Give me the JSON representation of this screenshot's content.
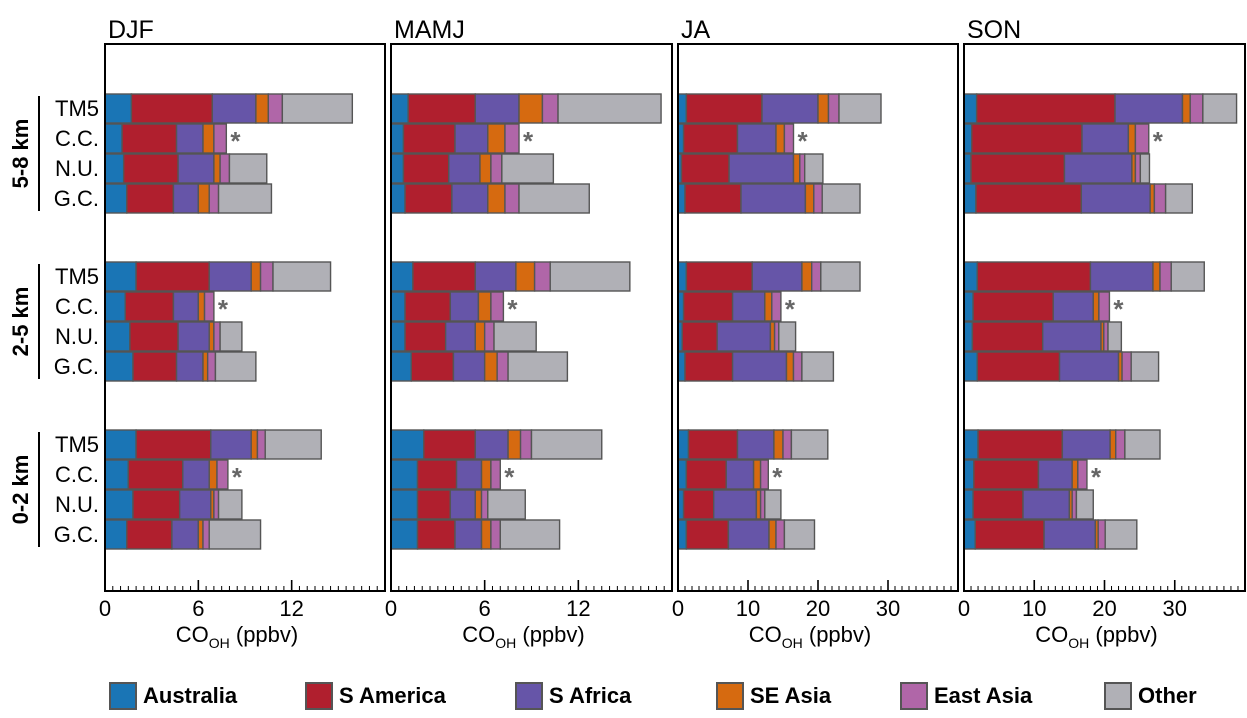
{
  "sources": [
    {
      "name": "Australia",
      "color": "#1a75b5"
    },
    {
      "name": "S America",
      "color": "#b01f2e"
    },
    {
      "name": "S Africa",
      "color": "#6655a8"
    },
    {
      "name": "SE Asia",
      "color": "#d66a10"
    },
    {
      "name": "East Asia",
      "color": "#b066a8"
    },
    {
      "name": "Other",
      "color": "#b0b0b6"
    }
  ],
  "models": [
    "TM5",
    "C.C.",
    "N.U.",
    "G.C."
  ],
  "layers": [
    "5-8 km",
    "2-5 km",
    "0-2 km"
  ],
  "xlabel": {
    "main": "CO",
    "sub": "OH",
    "unit": " (ppbv)"
  },
  "star": "*",
  "chart_data": [
    {
      "type": "bar",
      "title": "DJF",
      "xlim": [
        0,
        18
      ],
      "xticks": [
        0,
        6,
        12
      ],
      "groups": [
        {
          "layer": "5-8 km",
          "bars": [
            {
              "model": "TM5",
              "values": [
                1.7,
                5.2,
                2.8,
                0.8,
                0.9,
                4.5
              ],
              "star": false
            },
            {
              "model": "C.C.",
              "values": [
                1.1,
                3.5,
                1.7,
                0.7,
                0.8,
                0.0
              ],
              "star": true
            },
            {
              "model": "N.U.",
              "values": [
                1.2,
                3.5,
                2.3,
                0.4,
                0.6,
                2.4
              ],
              "star": false
            },
            {
              "model": "G.C.",
              "values": [
                1.4,
                3.0,
                1.6,
                0.7,
                0.6,
                3.4
              ],
              "star": false
            }
          ]
        },
        {
          "layer": "2-5 km",
          "bars": [
            {
              "model": "TM5",
              "values": [
                2.0,
                4.7,
                2.7,
                0.6,
                0.8,
                3.7
              ],
              "star": false
            },
            {
              "model": "C.C.",
              "values": [
                1.3,
                3.1,
                1.6,
                0.4,
                0.6,
                0.0
              ],
              "star": true
            },
            {
              "model": "N.U.",
              "values": [
                1.6,
                3.1,
                2.0,
                0.3,
                0.4,
                1.4
              ],
              "star": false
            },
            {
              "model": "G.C.",
              "values": [
                1.8,
                2.8,
                1.7,
                0.3,
                0.5,
                2.6
              ],
              "star": false
            }
          ]
        },
        {
          "layer": "0-2 km",
          "bars": [
            {
              "model": "TM5",
              "values": [
                2.0,
                4.8,
                2.6,
                0.4,
                0.5,
                3.6
              ],
              "star": false
            },
            {
              "model": "C.C.",
              "values": [
                1.5,
                3.5,
                1.7,
                0.5,
                0.7,
                0.0
              ],
              "star": true
            },
            {
              "model": "N.U.",
              "values": [
                1.8,
                3.0,
                2.0,
                0.2,
                0.3,
                1.5
              ],
              "star": false
            },
            {
              "model": "G.C.",
              "values": [
                1.4,
                2.9,
                1.7,
                0.3,
                0.4,
                3.3
              ],
              "star": false
            }
          ]
        }
      ]
    },
    {
      "type": "bar",
      "title": "MAMJ",
      "xlim": [
        0,
        18
      ],
      "xticks": [
        0,
        6,
        12
      ],
      "groups": [
        {
          "layer": "5-8 km",
          "bars": [
            {
              "model": "TM5",
              "values": [
                1.1,
                4.3,
                2.8,
                1.5,
                1.0,
                6.6
              ],
              "star": false
            },
            {
              "model": "C.C.",
              "values": [
                0.8,
                3.3,
                2.1,
                1.1,
                0.9,
                0.0
              ],
              "star": true
            },
            {
              "model": "N.U.",
              "values": [
                0.8,
                2.9,
                2.0,
                0.7,
                0.7,
                3.3
              ],
              "star": false
            },
            {
              "model": "G.C.",
              "values": [
                0.9,
                3.0,
                2.3,
                1.1,
                0.9,
                4.5
              ],
              "star": false
            }
          ]
        },
        {
          "layer": "2-5 km",
          "bars": [
            {
              "model": "TM5",
              "values": [
                1.4,
                4.0,
                2.6,
                1.2,
                1.0,
                5.1
              ],
              "star": false
            },
            {
              "model": "C.C.",
              "values": [
                0.9,
                2.9,
                1.8,
                0.8,
                0.8,
                0.0
              ],
              "star": true
            },
            {
              "model": "N.U.",
              "values": [
                0.9,
                2.6,
                1.9,
                0.6,
                0.6,
                2.7
              ],
              "star": false
            },
            {
              "model": "G.C.",
              "values": [
                1.3,
                2.7,
                2.0,
                0.8,
                0.7,
                3.8
              ],
              "star": false
            }
          ]
        },
        {
          "layer": "0-2 km",
          "bars": [
            {
              "model": "TM5",
              "values": [
                2.1,
                3.3,
                2.1,
                0.8,
                0.7,
                4.5
              ],
              "star": false
            },
            {
              "model": "C.C.",
              "values": [
                1.7,
                2.5,
                1.6,
                0.6,
                0.6,
                0.0
              ],
              "star": true
            },
            {
              "model": "N.U.",
              "values": [
                1.7,
                2.1,
                1.6,
                0.4,
                0.4,
                2.4
              ],
              "star": false
            },
            {
              "model": "G.C.",
              "values": [
                1.7,
                2.4,
                1.7,
                0.6,
                0.6,
                3.8
              ],
              "star": false
            }
          ]
        }
      ]
    },
    {
      "type": "bar",
      "title": "JA",
      "xlim": [
        0,
        40
      ],
      "xticks": [
        0,
        10,
        20,
        30
      ],
      "groups": [
        {
          "layer": "5-8 km",
          "bars": [
            {
              "model": "TM5",
              "values": [
                1.2,
                10.8,
                8.0,
                1.5,
                1.5,
                6.0
              ],
              "star": false
            },
            {
              "model": "C.C.",
              "values": [
                0.8,
                7.7,
                5.5,
                1.2,
                1.3,
                0.0
              ],
              "star": true
            },
            {
              "model": "N.U.",
              "values": [
                0.5,
                6.8,
                9.2,
                0.9,
                0.7,
                2.6
              ],
              "star": false
            },
            {
              "model": "G.C.",
              "values": [
                1.0,
                8.0,
                9.2,
                1.2,
                1.2,
                5.4
              ],
              "star": false
            }
          ]
        },
        {
          "layer": "2-5 km",
          "bars": [
            {
              "model": "TM5",
              "values": [
                1.2,
                9.4,
                7.1,
                1.4,
                1.3,
                5.6
              ],
              "star": false
            },
            {
              "model": "C.C.",
              "values": [
                0.8,
                7.0,
                4.6,
                1.0,
                1.3,
                0.0
              ],
              "star": true
            },
            {
              "model": "N.U.",
              "values": [
                0.6,
                5.0,
                7.6,
                0.6,
                0.6,
                2.4
              ],
              "star": false
            },
            {
              "model": "G.C.",
              "values": [
                1.0,
                6.8,
                7.7,
                1.0,
                1.2,
                4.5
              ],
              "star": false
            }
          ]
        },
        {
          "layer": "0-2 km",
          "bars": [
            {
              "model": "TM5",
              "values": [
                1.5,
                7.0,
                5.2,
                1.3,
                1.2,
                5.2
              ],
              "star": false
            },
            {
              "model": "C.C.",
              "values": [
                1.2,
                5.7,
                3.9,
                1.0,
                1.1,
                0.0
              ],
              "star": true
            },
            {
              "model": "N.U.",
              "values": [
                0.8,
                4.3,
                6.1,
                0.6,
                0.6,
                2.3
              ],
              "star": false
            },
            {
              "model": "G.C.",
              "values": [
                1.2,
                6.0,
                5.8,
                1.0,
                1.2,
                4.3
              ],
              "star": false
            }
          ]
        }
      ]
    },
    {
      "type": "bar",
      "title": "SON",
      "xlim": [
        0,
        40
      ],
      "xticks": [
        0,
        10,
        20,
        30
      ],
      "groups": [
        {
          "layer": "5-8 km",
          "bars": [
            {
              "model": "TM5",
              "values": [
                1.8,
                19.7,
                9.6,
                1.1,
                1.8,
                4.8
              ],
              "star": false
            },
            {
              "model": "C.C.",
              "values": [
                1.1,
                15.7,
                6.6,
                1.0,
                1.9,
                0.0
              ],
              "star": true
            },
            {
              "model": "N.U.",
              "values": [
                1.0,
                13.3,
                9.6,
                0.5,
                0.7,
                1.3
              ],
              "star": false
            },
            {
              "model": "G.C.",
              "values": [
                1.7,
                15.0,
                9.8,
                0.6,
                1.6,
                3.8
              ],
              "star": false
            }
          ]
        },
        {
          "layer": "2-5 km",
          "bars": [
            {
              "model": "TM5",
              "values": [
                1.9,
                16.1,
                8.9,
                1.0,
                1.6,
                4.7
              ],
              "star": false
            },
            {
              "model": "C.C.",
              "values": [
                1.3,
                11.4,
                5.7,
                0.8,
                1.5,
                0.0
              ],
              "star": true
            },
            {
              "model": "N.U.",
              "values": [
                1.2,
                10.0,
                8.3,
                0.4,
                0.6,
                1.9
              ],
              "star": false
            },
            {
              "model": "G.C.",
              "values": [
                1.9,
                11.7,
                8.4,
                0.5,
                1.3,
                3.9
              ],
              "star": false
            }
          ]
        },
        {
          "layer": "0-2 km",
          "bars": [
            {
              "model": "TM5",
              "values": [
                2.0,
                12.0,
                6.8,
                0.8,
                1.3,
                5.0
              ],
              "star": false
            },
            {
              "model": "C.C.",
              "values": [
                1.4,
                9.2,
                4.8,
                0.8,
                1.3,
                0.0
              ],
              "star": true
            },
            {
              "model": "N.U.",
              "values": [
                1.3,
                7.1,
                6.6,
                0.4,
                0.6,
                2.4
              ],
              "star": false
            },
            {
              "model": "G.C.",
              "values": [
                1.6,
                9.8,
                7.3,
                0.4,
                1.0,
                4.5
              ],
              "star": false
            }
          ]
        }
      ]
    }
  ]
}
